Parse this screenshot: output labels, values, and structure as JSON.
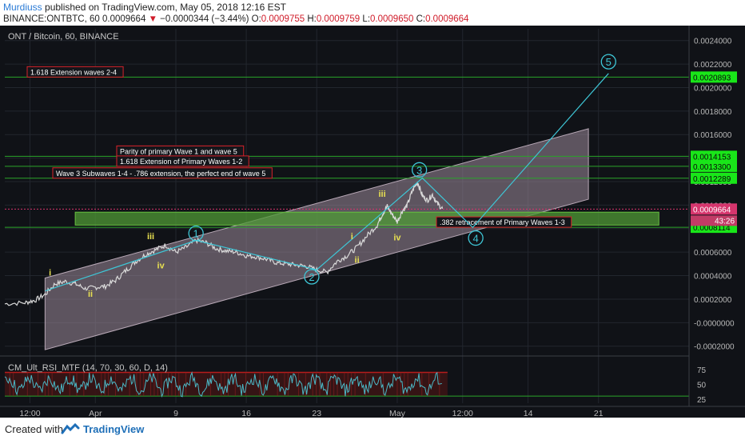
{
  "header": {
    "author": "Murdiuss",
    "published": "published on TradingView.com, May 05, 2018 12:16 EST",
    "symbol": "BINANCE:ONTBTC, 60",
    "price": "0.0009664",
    "change": "−0.0000344 (−3.44%)",
    "o_label": "O:",
    "o_value": "0.0009755",
    "h_label": "H:",
    "h_value": "0.0009759",
    "l_label": "L:",
    "l_value": "0.0009650",
    "c_label": "C:",
    "c_value": "0.0009664"
  },
  "footer": {
    "created_with": "Created with",
    "brand": "TradingView"
  },
  "colors": {
    "background": "#101217",
    "grid": "#22262e",
    "candles": "#d9d9d9",
    "wave_line": "#3ec6d6",
    "channel_fill": "#9c8a9a",
    "level_line": "#2aa52a",
    "level_tag": "#19e619",
    "annotation_border": "#d8222a",
    "wave_label": "#e8e051",
    "rsi_line": "#4ab8c6",
    "rsi_band": "#b71c1c",
    "current_price": "#d6356d"
  },
  "chart_data": [
    {
      "type": "line",
      "title": "ONT / Bitcoin, 60, BINANCE",
      "x_ticks": [
        "12:00",
        "Apr",
        "9",
        "16",
        "23",
        "May",
        "12:00",
        "14",
        "21"
      ],
      "x_tick_days": [
        -5.5,
        1,
        9,
        16,
        23,
        31,
        37.5,
        44,
        51
      ],
      "y_ticks": [
        "0.0024000",
        "0.0022000",
        "0.0020000",
        "0.0018000",
        "0.0016000",
        "0.0014000",
        "0.0012000",
        "0.0010000",
        "0.0008000",
        "0.0006000",
        "0.0004000",
        "0.0002000",
        "-0.0000000",
        "-0.0002000"
      ],
      "y_tick_values": [
        0.0024,
        0.0022,
        0.002,
        0.0018,
        0.0016,
        0.0014,
        0.0012,
        0.001,
        0.0008,
        0.0006,
        0.0004,
        0.0002,
        0.0,
        -0.0002
      ],
      "ylim": [
        -0.00027,
        0.0025
      ],
      "xlim": [
        -8,
        60
      ],
      "series": [
        {
          "price_path": [
            [
              -8,
              0.00016
            ],
            [
              -6,
              0.00017
            ],
            [
              -5,
              0.00019
            ],
            [
              -4,
              0.00024
            ],
            [
              -3,
              0.00033
            ],
            [
              -2,
              0.00035
            ],
            [
              -1,
              0.00033
            ],
            [
              0,
              0.00029
            ],
            [
              1,
              0.0003
            ],
            [
              2,
              0.00031
            ],
            [
              3,
              0.00036
            ],
            [
              4,
              0.00044
            ],
            [
              5,
              0.00052
            ],
            [
              6,
              0.00058
            ],
            [
              7,
              0.00062
            ],
            [
              8,
              0.00066
            ],
            [
              9,
              0.0006
            ],
            [
              10,
              0.00064
            ],
            [
              11,
              0.0007
            ],
            [
              12,
              0.00068
            ],
            [
              13,
              0.00063
            ],
            [
              14,
              0.00061
            ],
            [
              15,
              0.0006
            ],
            [
              16,
              0.00057
            ],
            [
              17,
              0.00056
            ],
            [
              18,
              0.00054
            ],
            [
              19,
              0.00051
            ],
            [
              20,
              0.0005
            ],
            [
              21,
              0.00049
            ],
            [
              22,
              0.00048
            ],
            [
              23,
              0.00045
            ],
            [
              24,
              0.00043
            ],
            [
              25,
              0.00052
            ],
            [
              26,
              0.00057
            ],
            [
              27,
              0.00064
            ],
            [
              28,
              0.00074
            ],
            [
              29,
              0.00083
            ],
            [
              29.5,
              0.00092
            ],
            [
              30,
              0.00099
            ],
            [
              30.5,
              0.00092
            ],
            [
              31,
              0.00086
            ],
            [
              31.5,
              0.00095
            ],
            [
              32,
              0.001
            ],
            [
              32.5,
              0.00112
            ],
            [
              33,
              0.0012
            ],
            [
              33.5,
              0.00108
            ],
            [
              34,
              0.00104
            ],
            [
              34.5,
              0.00109
            ],
            [
              35,
              0.00101
            ],
            [
              35.5,
              0.00097
            ]
          ]
        },
        {
          "wave_path": [
            [
              -4,
              0.00027
            ],
            [
              11,
              0.0007
            ],
            [
              23,
              0.00045
            ],
            [
              33.5,
              0.00123
            ],
            [
              38.5,
              0.00081
            ],
            [
              52,
              0.00212
            ]
          ]
        }
      ],
      "channel": {
        "x0": -4,
        "x1": 50,
        "upper_start": 0.00038,
        "upper_end": 0.00165,
        "lower_start": -0.00023,
        "lower_end": 0.00105
      },
      "horizontal_levels": [
        {
          "label": "1.618 Extension waves 2-4",
          "value": 0.0020893,
          "tag": "0.0020893"
        },
        {
          "label": "Parity of primary Wave 1 and wave 5",
          "value": 0.0014153,
          "tag": "0.0014153"
        },
        {
          "label": "1.618 Extension of Primary Waves 1-2",
          "value": 0.00133,
          "tag": "0.0013300"
        },
        {
          "label": "Wave 3 Subwaves 1-4 - .786 extension, the perfect end of wave 5",
          "value": 0.0012289,
          "tag": "0.0012289"
        },
        {
          "label": ".382 retracement of Primary Waves 1-3",
          "value": 0.0008114,
          "tag": "0.0008114"
        }
      ],
      "current_price": {
        "value": 0.0009664,
        "tag": "0.0009664",
        "countdown": "43:26"
      },
      "support_zone": {
        "x0": -1,
        "x1": 57,
        "y0": 0.00083,
        "y1": 0.00094
      },
      "wave_labels": [
        {
          "text": "i",
          "x": -3.5,
          "y": 0.0004
        },
        {
          "text": "ii",
          "x": 0.5,
          "y": 0.00022
        },
        {
          "text": "iii",
          "x": 6.5,
          "y": 0.00071
        },
        {
          "text": "iv",
          "x": 7.5,
          "y": 0.00046
        },
        {
          "text": "i",
          "x": 26.5,
          "y": 0.00071
        },
        {
          "text": "ii",
          "x": 27,
          "y": 0.00051
        },
        {
          "text": "iii",
          "x": 29.5,
          "y": 0.00107
        },
        {
          "text": "iv",
          "x": 31,
          "y": 0.0007
        }
      ],
      "circled_waves": [
        {
          "text": "1",
          "x": 11,
          "y": 0.00076
        },
        {
          "text": "2",
          "x": 22.5,
          "y": 0.00039
        },
        {
          "text": "3",
          "x": 33.2,
          "y": 0.0013
        },
        {
          "text": "4",
          "x": 38.8,
          "y": 0.00072
        },
        {
          "text": "5",
          "x": 52,
          "y": 0.00222
        }
      ]
    },
    {
      "type": "line",
      "title": "CM_Ult_RSI_MTF (14, 70, 30, 60, D, 14)",
      "y_ticks": [
        "75",
        "50",
        "25"
      ],
      "y_tick_values": [
        75,
        50,
        25
      ],
      "ylim": [
        18,
        95
      ],
      "bands": [
        70,
        30
      ]
    }
  ]
}
